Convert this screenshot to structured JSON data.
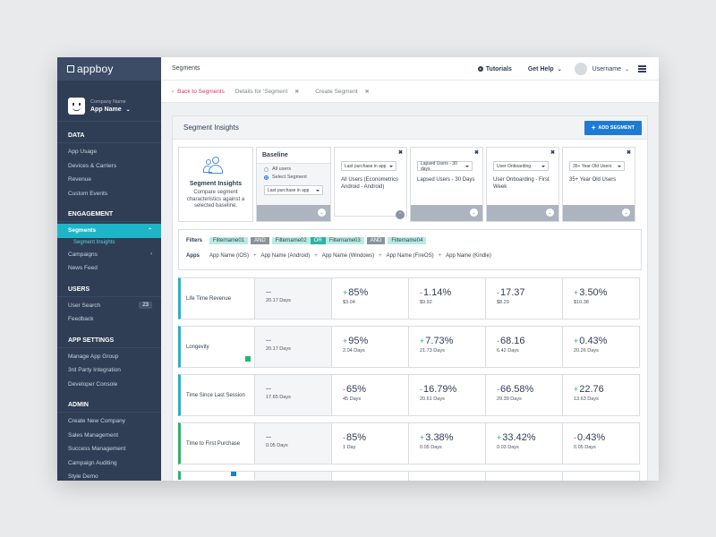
{
  "sidebar": {
    "logo_text": "appboy",
    "company_label": "Company Name",
    "app_name": "App Name",
    "sections": {
      "data": {
        "title": "DATA",
        "items": [
          "App Usage",
          "Devices & Carriers",
          "Revenue",
          "Custom Events"
        ]
      },
      "engagement": {
        "title": "ENGAGEMENT",
        "active": "Segments",
        "sub_active": "Segment Insights",
        "items": [
          "Campaigns",
          "News Feed"
        ]
      },
      "users": {
        "title": "USERS",
        "user_search": "User Search",
        "user_search_badge": "23",
        "feedback": "Feedback"
      },
      "app_settings": {
        "title": "APP SETTINGS",
        "items": [
          "Manage App Group",
          "3rd Party Integration",
          "Developer Console"
        ]
      },
      "admin": {
        "title": "ADMIN",
        "items": [
          "Create New Company",
          "Sales Management",
          "Success Management",
          "Campaign Auditing",
          "Style Demo"
        ]
      }
    }
  },
  "topbar": {
    "title": "Segments",
    "tutorials": "Tutorials",
    "get_help": "Get Help",
    "username": "Username"
  },
  "breadcrumb": {
    "back": "Back to Segments",
    "item1": "Details for 'Segment",
    "item2": "Create Segment"
  },
  "panel": {
    "title": "Segment Insights",
    "add_button": "ADD SEGMENT"
  },
  "insight_card": {
    "title": "Segment Insights",
    "desc": "Compare segment characteristics against a selected baseline."
  },
  "baseline": {
    "title": "Baseline",
    "opt_all": "All users",
    "opt_select": "Select Segment",
    "select_value": "Last purchase in app"
  },
  "segments": [
    {
      "select": "Last purchase in app",
      "name": "All Users (Econometrics Android - Android)"
    },
    {
      "select": "Lapsed Users - 30 days",
      "name": "Lapsed Users - 30 Days"
    },
    {
      "select": "User Onboarding",
      "name": "User Onboarding - First Week"
    },
    {
      "select": "35+ Year Old Users",
      "name": "35+ Year Old Users"
    }
  ],
  "filters": {
    "label": "Filters",
    "f1": "Filtername01",
    "and1": "AND",
    "f2": "Filtername02",
    "or": "OR",
    "f3": "Filtername03",
    "and2": "AND",
    "f4": "Filtername04",
    "apps_label": "Apps",
    "apps": [
      "App Name (iOS)",
      "App Name (Android)",
      "App Name (Windows)",
      "App Name (FireOS)",
      "App Name (Kindle)"
    ],
    "plus": "+"
  },
  "metrics": [
    {
      "label": "Life Time Revenue",
      "base": {
        "value": "--",
        "sub": "20.17 Days"
      },
      "cells": [
        {
          "sign": "+",
          "value": "85%",
          "sub": "$3.04"
        },
        {
          "sign": "-",
          "value": "1.14%",
          "sub": "$9.92"
        },
        {
          "sign": "-",
          "value": "17.37",
          "sub": "$8.29"
        },
        {
          "sign": "+",
          "value": "3.50%",
          "sub": "$10.38"
        }
      ]
    },
    {
      "label": "Longevity",
      "base": {
        "value": "--",
        "sub": "20.17 Days"
      },
      "cells": [
        {
          "sign": "+",
          "value": "95%",
          "sub": "2.04 Days"
        },
        {
          "sign": "+",
          "value": "7.73%",
          "sub": "21.73 Days"
        },
        {
          "sign": "-",
          "value": "68.16",
          "sub": "6.42 Days"
        },
        {
          "sign": "+",
          "value": "0.43%",
          "sub": "20.26 Days"
        }
      ]
    },
    {
      "label": "Time Since Last Session",
      "base": {
        "value": "--",
        "sub": "17.65 Days"
      },
      "cells": [
        {
          "sign": "-",
          "value": "65%",
          "sub": "45 Days"
        },
        {
          "sign": "-",
          "value": "16.79%",
          "sub": "20.61 Days"
        },
        {
          "sign": "-",
          "value": "66.58%",
          "sub": "29.39 Days"
        },
        {
          "sign": "+",
          "value": "22.76",
          "sub": "13.63 Days"
        }
      ]
    },
    {
      "label": "Time to First Purchase",
      "base": {
        "value": "--",
        "sub": "0.05 Days"
      },
      "cells": [
        {
          "sign": "-",
          "value": "85%",
          "sub": "1 Day"
        },
        {
          "sign": "+",
          "value": "3.38%",
          "sub": "0.05 Days"
        },
        {
          "sign": "+",
          "value": "33.42%",
          "sub": "0.03 Days"
        },
        {
          "sign": "-",
          "value": "0.43%",
          "sub": "0.05 Days"
        }
      ]
    }
  ],
  "colors": {
    "accent": "#1fb5c9",
    "up": "#27b56b",
    "down": "#e0365e",
    "button": "#1e7bd4",
    "sidebar": "#2f3e55"
  }
}
